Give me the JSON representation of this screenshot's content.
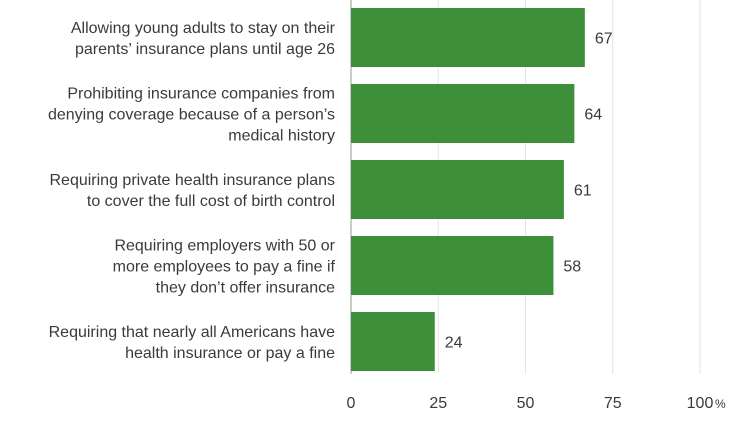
{
  "chart_data": {
    "type": "bar",
    "orientation": "horizontal",
    "categories": [
      [
        "Allowing young adults to stay on their",
        "parents’ insurance plans until age 26"
      ],
      [
        "Prohibiting insurance companies from",
        "denying coverage because of a person’s",
        "medical history"
      ],
      [
        "Requiring private health insurance plans",
        "to cover the full cost of birth control"
      ],
      [
        "Requiring employers with 50 or",
        "more employees to pay a fine if",
        "they don’t offer insurance"
      ],
      [
        "Requiring that nearly all Americans have",
        "health insurance or pay a fine"
      ]
    ],
    "values": [
      67,
      64,
      61,
      58,
      24
    ],
    "value_labels": [
      "67",
      "64",
      "61",
      "58",
      "24"
    ],
    "xlim": [
      0,
      100
    ],
    "xticks": [
      0,
      25,
      50,
      75,
      100
    ],
    "xtick_labels": [
      "0",
      "25",
      "50",
      "75",
      "100"
    ],
    "x_unit": "%",
    "bar_color": "#3d8f3a",
    "grid": true
  }
}
